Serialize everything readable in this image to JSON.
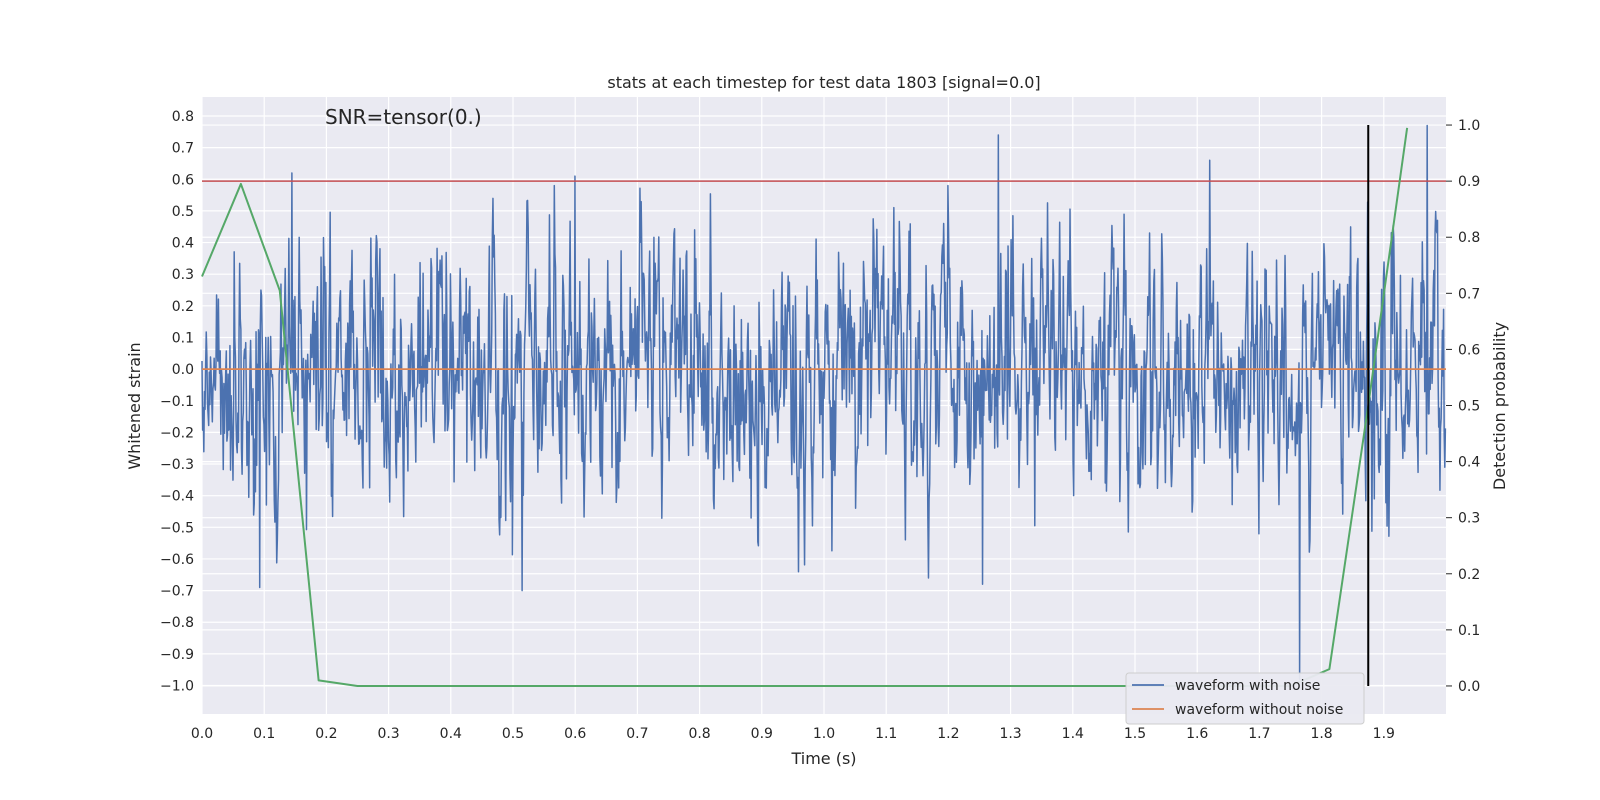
{
  "chart_data": {
    "type": "line",
    "title": "stats at each timestep for test data 1803 [signal=0.0]",
    "xlabel": "Time (s)",
    "ylabel": "Whitened strain",
    "y2label": "Detection probability",
    "annotation": "SNR=tensor(0.)",
    "xlim": [
      0.0,
      2.0
    ],
    "ylim": [
      -1.09,
      0.86
    ],
    "y2lim": [
      -0.05,
      1.05
    ],
    "xticks": [
      "0.0",
      "0.1",
      "0.2",
      "0.3",
      "0.4",
      "0.5",
      "0.6",
      "0.7",
      "0.8",
      "0.9",
      "1.0",
      "1.1",
      "1.2",
      "1.3",
      "1.4",
      "1.5",
      "1.6",
      "1.7",
      "1.8",
      "1.9"
    ],
    "yticks": [
      "0.8",
      "0.7",
      "0.6",
      "0.5",
      "0.4",
      "0.3",
      "0.2",
      "0.1",
      "0.0",
      "−0.1",
      "−0.2",
      "−0.3",
      "−0.4",
      "−0.5",
      "−0.6",
      "−0.7",
      "−0.8",
      "−0.9",
      "−1.0"
    ],
    "y2ticks": [
      "1.0",
      "0.9",
      "0.8",
      "0.7",
      "0.6",
      "0.5",
      "0.4",
      "0.3",
      "0.2",
      "0.1",
      "0.0"
    ],
    "grid": true,
    "legend_position": "lower-right",
    "legend": [
      "waveform with noise",
      "waveform without noise"
    ],
    "colors": {
      "noise": "#4c72b0",
      "clean": "#dd8452",
      "probability": "#55a868",
      "threshold": "#c44e52",
      "marker": "#000000",
      "plot_bg": "#eaeaf2"
    },
    "series": [
      {
        "name": "waveform with noise",
        "description_values": "dense noise between about -0.7 and 0.77 whitened strain, spikes at ~1.28 (0.74), ~1.97 (0.77), ~1.765 (-0.98)",
        "noise_sd": 0.2
      },
      {
        "name": "waveform without noise",
        "x": [
          0.0,
          2.0
        ],
        "y": [
          0.0,
          0.0
        ]
      },
      {
        "axis": "right",
        "x": [
          0.0,
          0.0625,
          0.125,
          0.1875,
          0.25,
          1.375,
          1.5,
          1.625,
          1.75,
          1.8125,
          1.875,
          1.9375
        ],
        "y": [
          0.73,
          0.895,
          0.705,
          0.01,
          0.0,
          0.0,
          0.0,
          0.0,
          0.0,
          0.03,
          0.5,
          0.995
        ]
      }
    ],
    "threshold_line": {
      "axis": "right",
      "y": 0.9
    },
    "marker_line": {
      "x": 1.875,
      "y2_range": [
        0.0,
        1.0
      ]
    }
  }
}
